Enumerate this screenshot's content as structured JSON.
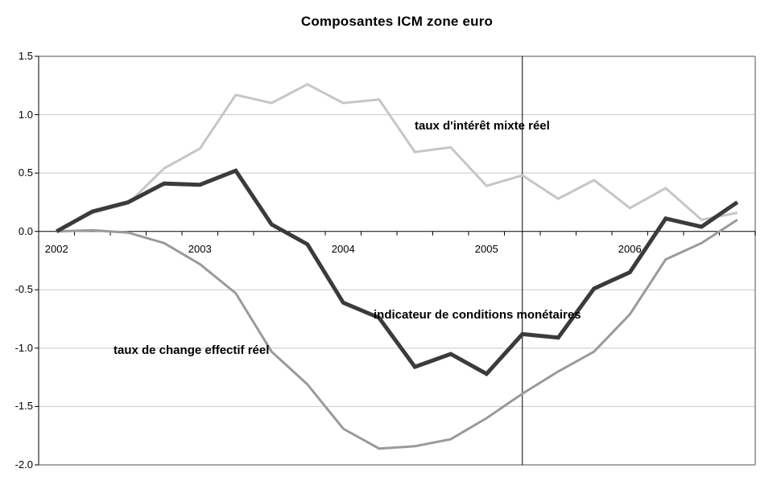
{
  "title": "Composantes ICM zone euro",
  "chart_data": {
    "type": "line",
    "title": "Composantes ICM zone euro",
    "categories": [
      "2002-Q1",
      "2002-Q2",
      "2002-Q3",
      "2002-Q4",
      "2003-Q1",
      "2003-Q2",
      "2003-Q3",
      "2003-Q4",
      "2004-Q1",
      "2004-Q2",
      "2004-Q3",
      "2004-Q4",
      "2005-Q1",
      "2005-Q2",
      "2005-Q3",
      "2005-Q4",
      "2006-Q1",
      "2006-Q2",
      "2006-Q3",
      "2006-Q4"
    ],
    "x_axis": {
      "year_labels": [
        "2002",
        "2003",
        "2004",
        "2005",
        "2006"
      ],
      "year_label_categories": [
        "2002-Q1",
        "2003-Q1",
        "2004-Q1",
        "2005-Q1",
        "2006-Q1"
      ]
    },
    "y_axis": {
      "min": -2.0,
      "max": 1.5,
      "step": 0.5,
      "tick_labels": [
        "1.5",
        "1.0",
        "0.5",
        "0.0",
        "-0.5",
        "-1.0",
        "-1.5",
        "-2.0"
      ]
    },
    "grid": {
      "horizontal": true,
      "vertical": false
    },
    "legend_position": "inline-annotations",
    "vertical_marker_category": "2005-Q2",
    "colors": {
      "axis": "#000000",
      "frame": "#8c8c8c",
      "gridline": "#c9c9c9",
      "background": "#ffffff"
    },
    "series": [
      {
        "name": "taux d'intérêt mixte réel",
        "color": "#c6c6c6",
        "line_width": 3,
        "values": [
          0.0,
          0.16,
          0.24,
          0.54,
          0.71,
          1.17,
          1.1,
          1.26,
          1.1,
          1.13,
          0.68,
          0.72,
          0.39,
          0.48,
          0.28,
          0.44,
          0.2,
          0.37,
          0.1,
          0.16
        ]
      },
      {
        "name": "indicateur de conditions monétaires",
        "color": "#3b3b3b",
        "line_width": 5,
        "values": [
          0.0,
          0.17,
          0.25,
          0.41,
          0.4,
          0.52,
          0.06,
          -0.11,
          -0.61,
          -0.74,
          -1.16,
          -1.05,
          -1.22,
          -0.88,
          -0.91,
          -0.49,
          -0.35,
          0.11,
          0.04,
          0.25
        ]
      },
      {
        "name": "taux de change effectif réel",
        "color": "#9a9a9a",
        "line_width": 3,
        "values": [
          0.0,
          0.01,
          -0.01,
          -0.1,
          -0.28,
          -0.53,
          -1.03,
          -1.31,
          -1.69,
          -1.86,
          -1.84,
          -1.78,
          -1.6,
          -1.39,
          -1.2,
          -1.03,
          -0.71,
          -0.24,
          -0.1,
          0.1
        ]
      }
    ]
  }
}
